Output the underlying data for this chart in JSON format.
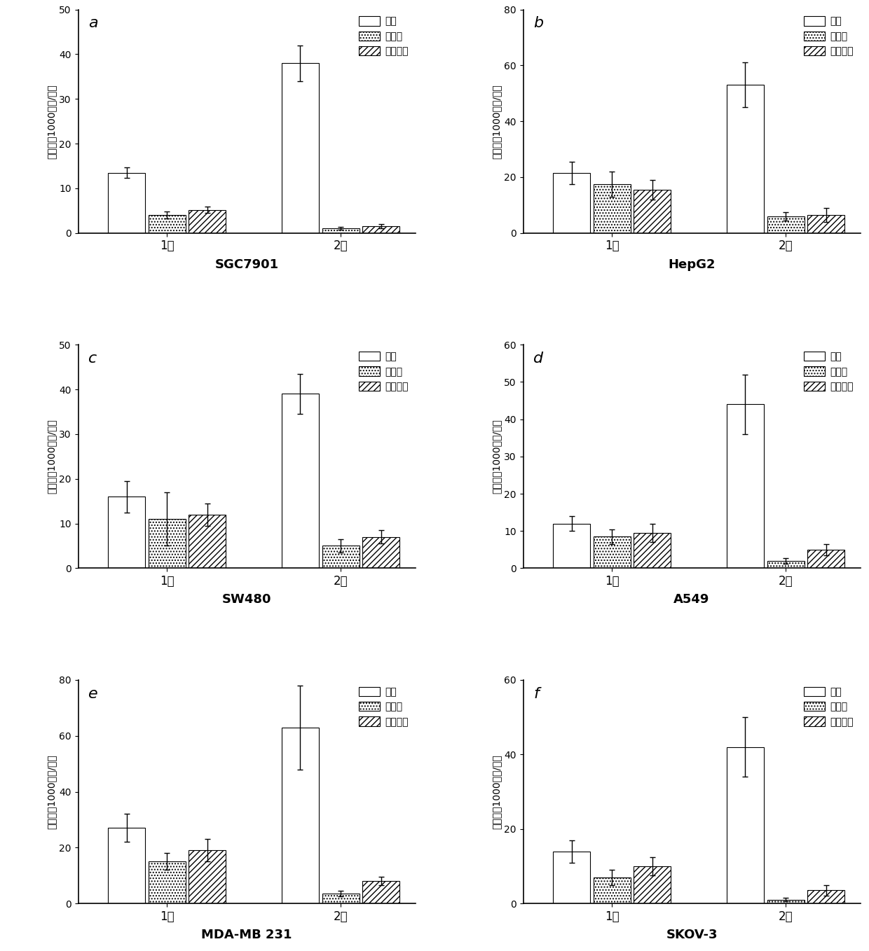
{
  "panels": [
    {
      "label": "a",
      "title": "SGC7901",
      "ylim": [
        0,
        50
      ],
      "yticks": [
        0,
        10,
        20,
        30,
        40,
        50
      ],
      "gen1": [
        13.5,
        4.0,
        5.2
      ],
      "gen2": [
        38.0,
        1.0,
        1.5
      ],
      "err1": [
        1.2,
        0.8,
        0.7
      ],
      "err2": [
        4.0,
        0.3,
        0.5
      ]
    },
    {
      "label": "b",
      "title": "HepG2",
      "ylim": [
        0,
        80
      ],
      "yticks": [
        0,
        20,
        40,
        60,
        80
      ],
      "gen1": [
        21.5,
        17.5,
        15.5
      ],
      "gen2": [
        53.0,
        6.0,
        6.5
      ],
      "err1": [
        4.0,
        4.5,
        3.5
      ],
      "err2": [
        8.0,
        1.5,
        2.5
      ]
    },
    {
      "label": "c",
      "title": "SW480",
      "ylim": [
        0,
        50
      ],
      "yticks": [
        0,
        10,
        20,
        30,
        40,
        50
      ],
      "gen1": [
        16.0,
        11.0,
        12.0
      ],
      "gen2": [
        39.0,
        5.0,
        7.0
      ],
      "err1": [
        3.5,
        6.0,
        2.5
      ],
      "err2": [
        4.5,
        1.5,
        1.5
      ]
    },
    {
      "label": "d",
      "title": "A549",
      "ylim": [
        0,
        60
      ],
      "yticks": [
        0,
        10,
        20,
        30,
        40,
        50,
        60
      ],
      "gen1": [
        12.0,
        8.5,
        9.5
      ],
      "gen2": [
        44.0,
        2.0,
        5.0
      ],
      "err1": [
        2.0,
        2.0,
        2.5
      ],
      "err2": [
        8.0,
        0.8,
        1.5
      ]
    },
    {
      "label": "e",
      "title": "MDA-MB 231",
      "ylim": [
        0,
        80
      ],
      "yticks": [
        0,
        20,
        40,
        60,
        80
      ],
      "gen1": [
        27.0,
        15.0,
        19.0
      ],
      "gen2": [
        63.0,
        3.5,
        8.0
      ],
      "err1": [
        5.0,
        3.0,
        4.0
      ],
      "err2": [
        15.0,
        1.0,
        1.5
      ]
    },
    {
      "label": "f",
      "title": "SKOV-3",
      "ylim": [
        0,
        60
      ],
      "yticks": [
        0,
        20,
        40,
        60
      ],
      "gen1": [
        14.0,
        7.0,
        10.0
      ],
      "gen2": [
        42.0,
        1.0,
        3.5
      ],
      "err1": [
        3.0,
        2.0,
        2.5
      ],
      "err2": [
        8.0,
        0.5,
        1.5
      ]
    }
  ],
  "legend_labels": [
    "对照",
    "绻原酸",
    "新绻原酸"
  ],
  "ylabel": "成球数（1000细胞/孔）",
  "xtick_labels": [
    "1代",
    "2代"
  ],
  "bar_width": 0.2,
  "group_centers": [
    0.32,
    1.18
  ],
  "colors": [
    "white",
    "white",
    "white"
  ],
  "hatches": [
    "",
    "....",
    "////"
  ],
  "edgecolor": "black"
}
